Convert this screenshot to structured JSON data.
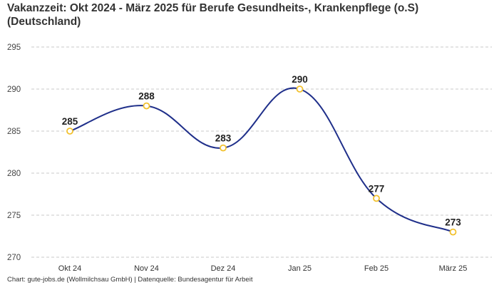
{
  "title": "Vakanzzeit: Okt 2024 - März 2025 für Berufe Gesundheits-, Krankenpflege (o.S) (Deutschland)",
  "footer": "Chart: gute-jobs.de (Wollmilchsau GmbH) | Datenquelle: Bundesagentur für Arbeit",
  "colors": {
    "line": "#1f2f8a",
    "marker_stroke": "#f2c12e",
    "marker_fill": "#ffffff",
    "grid": "#c8c8c8"
  },
  "chart_data": {
    "type": "line",
    "categories": [
      "Okt 24",
      "Nov 24",
      "Dez 24",
      "Jan 25",
      "Feb 25",
      "März 25"
    ],
    "values": [
      285,
      288,
      283,
      290,
      277,
      273
    ],
    "data_labels": [
      "285",
      "288",
      "283",
      "290",
      "277",
      "273"
    ],
    "yticks": [
      270,
      275,
      280,
      285,
      290,
      295
    ],
    "ylim": [
      270,
      295
    ],
    "grid": true,
    "smooth": true,
    "legend": "none"
  }
}
